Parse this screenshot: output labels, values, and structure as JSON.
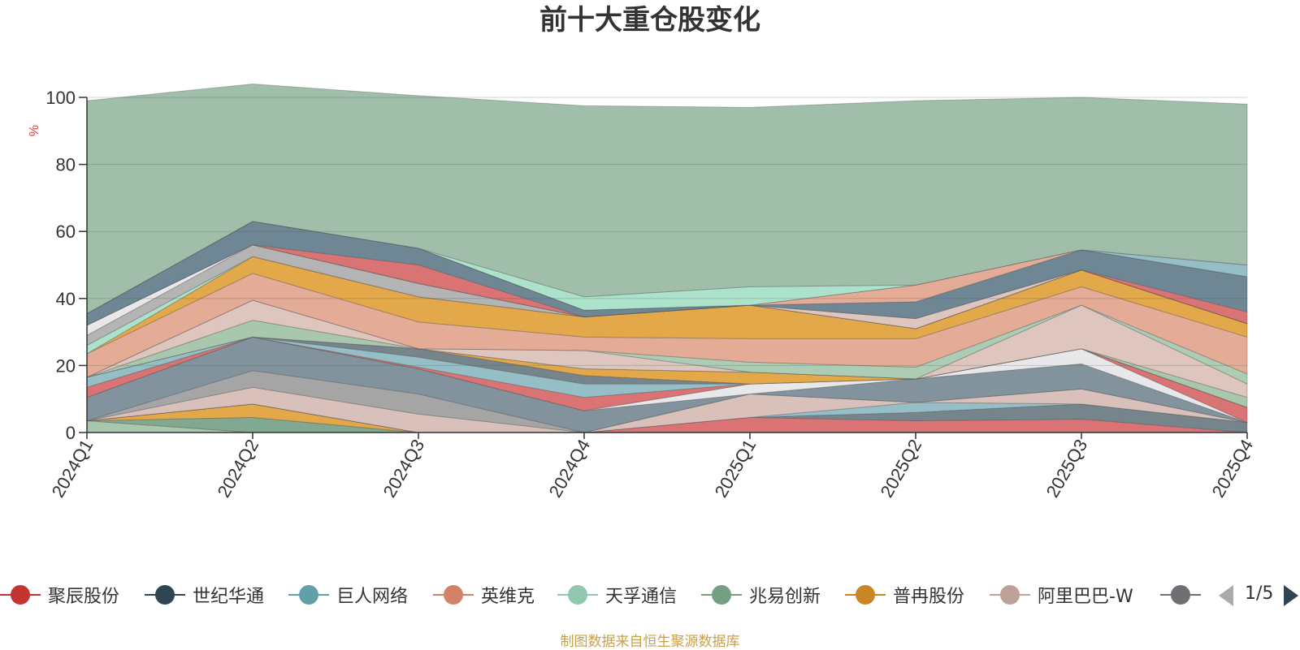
{
  "chart_data": {
    "type": "area",
    "title": "前十大重仓股变化",
    "ylabel": "%",
    "ylim": [
      0,
      100
    ],
    "yticks": [
      "0",
      "20",
      "40",
      "60",
      "80",
      "100"
    ],
    "categories": [
      "2024Q1",
      "2024Q2",
      "2024Q3",
      "2024Q4",
      "2025Q1",
      "2025Q2",
      "2025Q3",
      "2025Q4"
    ],
    "grid": true,
    "legend_position": "bottom",
    "series": [
      {
        "name": "",
        "color": "#a3c4a8",
        "values": [
          3.5,
          0,
          0,
          0,
          0,
          0,
          0,
          0
        ]
      },
      {
        "name": "兆易创新",
        "color": "#7aa38a",
        "values": [
          0,
          4.5,
          0,
          0,
          0,
          0,
          0,
          0
        ]
      },
      {
        "name": "普冉股份",
        "color": "#e0a340",
        "values": [
          0,
          4.0,
          0,
          0,
          0,
          0,
          0,
          0
        ]
      },
      {
        "name": "聚辰股份",
        "color": "#d86c6c",
        "values": [
          0,
          0,
          0,
          0,
          4.5,
          3.5,
          4.0,
          0
        ]
      },
      {
        "name": "",
        "color": "#6f7d86",
        "values": [
          0,
          0,
          0,
          0,
          0,
          2.5,
          4.5,
          3.0
        ]
      },
      {
        "name": "巨人网络",
        "color": "#8fbac4",
        "values": [
          0,
          0,
          0,
          0,
          0,
          3.0,
          0,
          0
        ]
      },
      {
        "name": "阿里巴巴-W",
        "color": "#d8bdb6",
        "values": [
          0,
          5.0,
          5.5,
          0,
          7.0,
          0,
          4.5,
          0
        ]
      },
      {
        "name": "",
        "color": "#a0a0a0",
        "values": [
          0,
          5.0,
          6.0,
          0,
          0,
          0,
          0,
          0
        ]
      },
      {
        "name": "世纪华通",
        "color": "#7b8d99",
        "values": [
          7.0,
          10.0,
          7.5,
          6.5,
          0,
          7.0,
          7.5,
          0
        ]
      },
      {
        "name": "",
        "color": "#e7e7ea",
        "values": [
          0,
          0,
          0,
          0,
          3.0,
          0,
          4.5,
          0
        ]
      },
      {
        "name": "",
        "color": "#d86c6c",
        "values": [
          3.0,
          0,
          0.5,
          4.0,
          0,
          0,
          0,
          4.5
        ]
      },
      {
        "name": "",
        "color": "#8fbac4",
        "values": [
          3.0,
          0,
          3.0,
          4.0,
          0,
          0,
          0,
          0
        ]
      },
      {
        "name": "",
        "color": "#6f7d86",
        "values": [
          0,
          0,
          2.5,
          2.5,
          0,
          0,
          0,
          0
        ]
      },
      {
        "name": "",
        "color": "#e0a340",
        "values": [
          0,
          0,
          0,
          2.0,
          3.5,
          0,
          0,
          0
        ]
      },
      {
        "name": "",
        "color": "#a3c4a8",
        "values": [
          0,
          5.0,
          0,
          0,
          0,
          0,
          0,
          3.0
        ]
      },
      {
        "name": "",
        "color": "#dcc2ba",
        "values": [
          0,
          6.0,
          0,
          5.5,
          0,
          0,
          13.0,
          4.0
        ]
      },
      {
        "name": "",
        "color": "#a8c9b0",
        "values": [
          0,
          0,
          0,
          0,
          3.0,
          3.5,
          0,
          3.0
        ]
      },
      {
        "name": "英维克",
        "color": "#e3a691",
        "values": [
          7.0,
          8.0,
          8.0,
          4.0,
          7.0,
          8.5,
          5.5,
          11.0
        ]
      },
      {
        "name": "",
        "color": "#e0a340",
        "values": [
          0,
          5.0,
          7.5,
          6.0,
          10.0,
          3.0,
          5.0,
          4.0
        ]
      },
      {
        "name": "天孚通信",
        "color": "#a8e0c8",
        "values": [
          2.5,
          0,
          0,
          0,
          0,
          0,
          0,
          0
        ]
      },
      {
        "name": "",
        "color": "#b0b0b0",
        "values": [
          3.0,
          3.5,
          4.0,
          0,
          0,
          0,
          0,
          0
        ]
      },
      {
        "name": "",
        "color": "#e7e7ea",
        "values": [
          3.0,
          0,
          0,
          0,
          0,
          0,
          0,
          0
        ]
      },
      {
        "name": "",
        "color": "#dcc2ba",
        "values": [
          0,
          0,
          0,
          0,
          0,
          3.0,
          0,
          0
        ]
      },
      {
        "name": "",
        "color": "#d86c6c",
        "values": [
          0,
          0,
          5.5,
          0,
          0,
          0,
          0,
          3.5
        ]
      },
      {
        "name": "",
        "color": "#67808f",
        "values": [
          3.5,
          7.0,
          5.0,
          2.0,
          0,
          5.0,
          6.0,
          10.5
        ]
      },
      {
        "name": "",
        "color": "#e3a691",
        "values": [
          0,
          0,
          0,
          0,
          0,
          5.0,
          0,
          0
        ]
      },
      {
        "name": "",
        "color": "#8fbac4",
        "values": [
          0,
          0,
          0,
          0,
          0,
          0,
          0,
          3.5
        ]
      },
      {
        "name": "",
        "color": "#a8e0c8",
        "values": [
          0,
          0,
          0,
          4.0,
          5.5,
          0,
          0,
          0
        ]
      },
      {
        "name": "",
        "color": "#9cbaa6",
        "values": [
          63.5,
          41.0,
          45.5,
          57.0,
          53.5,
          55.0,
          45.5,
          48.0
        ]
      }
    ]
  },
  "legend": {
    "items": [
      {
        "label": "聚辰股份",
        "color": "#c23531",
        "icon": "circle-line-icon"
      },
      {
        "label": "世纪华通",
        "color": "#2f4554",
        "icon": "circle-line-icon"
      },
      {
        "label": "巨人网络",
        "color": "#61a0a8",
        "icon": "circle-line-icon"
      },
      {
        "label": "英维克",
        "color": "#d48265",
        "icon": "circle-line-icon"
      },
      {
        "label": "天孚通信",
        "color": "#91c7ae",
        "icon": "circle-line-icon"
      },
      {
        "label": "兆易创新",
        "color": "#749f83",
        "icon": "circle-line-icon"
      },
      {
        "label": "普冉股份",
        "color": "#ca8622",
        "icon": "circle-line-icon"
      },
      {
        "label": "阿里巴巴-W",
        "color": "#bda29a",
        "icon": "circle-line-icon"
      },
      {
        "label": "",
        "color": "#6e7074",
        "icon": "circle-line-icon"
      }
    ],
    "page": "1/5"
  },
  "source": "制图数据来自恒生聚源数据库"
}
